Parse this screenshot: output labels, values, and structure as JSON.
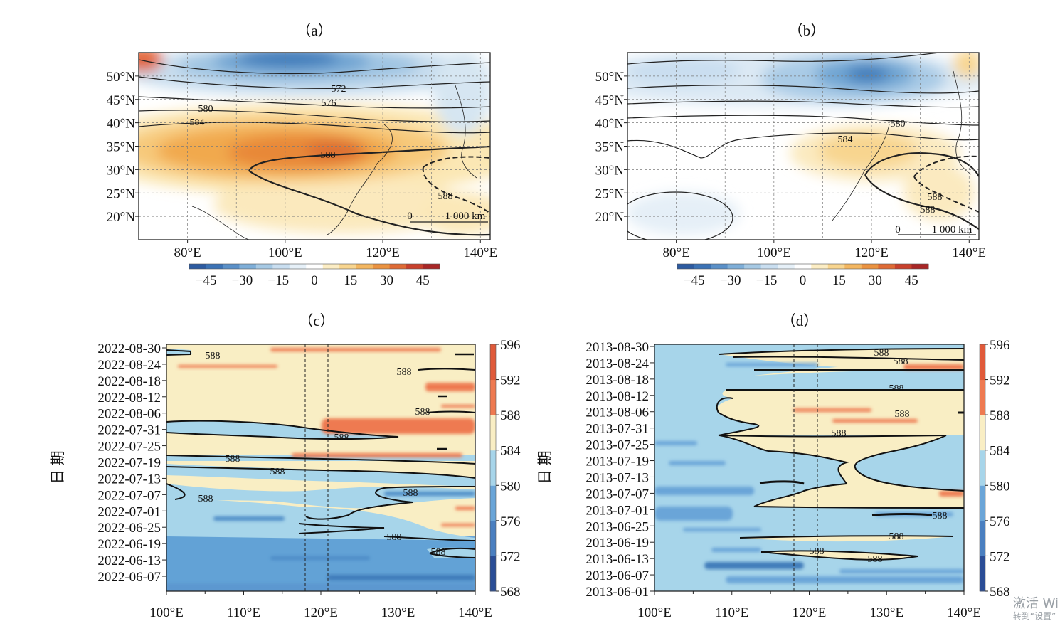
{
  "watermark": {
    "line1": "激活 Wi",
    "line2": "转到“设置”"
  },
  "chart_data": [
    {
      "id": "a",
      "type": "heatmap",
      "panel_label": "（a）",
      "x_ticks": [
        "80°E",
        "100°E",
        "120°E",
        "140°E"
      ],
      "x_tick_values": [
        80,
        100,
        120,
        140
      ],
      "y_ticks": [
        "50°N",
        "45°N",
        "40°N",
        "35°N",
        "30°N",
        "25°N",
        "20°N"
      ],
      "y_tick_values": [
        50,
        45,
        40,
        35,
        30,
        25,
        20
      ],
      "xlim": [
        70,
        142
      ],
      "ylim": [
        15,
        55
      ],
      "grid": true,
      "colorbar": {
        "ticks": [
          "−45",
          "−30",
          "−15",
          "0",
          "15",
          "30",
          "45"
        ],
        "values": [
          -45,
          -30,
          -15,
          0,
          15,
          30,
          45
        ],
        "range": [
          -52,
          52
        ],
        "orientation": "horizontal"
      },
      "contour_labels": [
        "572",
        "576",
        "580",
        "584",
        "588",
        "588"
      ],
      "scale_bar": {
        "zero": "0",
        "label": "1 000 km"
      }
    },
    {
      "id": "b",
      "type": "heatmap",
      "panel_label": "（b）",
      "x_ticks": [
        "80°E",
        "100°E",
        "120°E",
        "140°E"
      ],
      "x_tick_values": [
        80,
        100,
        120,
        140
      ],
      "y_ticks": [
        "50°N",
        "45°N",
        "40°N",
        "35°N",
        "30°N",
        "25°N",
        "20°N"
      ],
      "y_tick_values": [
        50,
        45,
        40,
        35,
        30,
        25,
        20
      ],
      "xlim": [
        70,
        142
      ],
      "ylim": [
        15,
        55
      ],
      "grid": true,
      "colorbar": {
        "ticks": [
          "−45",
          "−30",
          "−15",
          "0",
          "15",
          "30",
          "45"
        ],
        "values": [
          -45,
          -30,
          -15,
          0,
          15,
          30,
          45
        ],
        "range": [
          -52,
          52
        ],
        "orientation": "horizontal"
      },
      "contour_labels": [
        "580",
        "584",
        "588",
        "588"
      ],
      "scale_bar": {
        "zero": "0",
        "label": "1 000 km"
      }
    },
    {
      "id": "c",
      "type": "heatmap",
      "panel_label": "（c）",
      "ylabel": "日 期",
      "x_ticks": [
        "100°E",
        "110°E",
        "120°E",
        "130°E",
        "140°E"
      ],
      "x_tick_values": [
        100,
        110,
        120,
        130,
        140
      ],
      "xlim": [
        100,
        140
      ],
      "y_ticks": [
        "2022-06-07",
        "2022-06-13",
        "2022-06-19",
        "2022-06-25",
        "2022-07-01",
        "2022-07-07",
        "2022-07-13",
        "2022-07-19",
        "2022-07-25",
        "2022-07-31",
        "2022-08-06",
        "2022-08-12",
        "2022-08-18",
        "2022-08-24",
        "2022-08-30"
      ],
      "colorbar": {
        "ticks": [
          "568",
          "572",
          "576",
          "580",
          "584",
          "588",
          "592",
          "596"
        ],
        "values": [
          568,
          572,
          576,
          580,
          584,
          588,
          592,
          596
        ],
        "orientation": "vertical"
      },
      "contour_labels": [
        "588",
        "588",
        "588",
        "588",
        "588",
        "588",
        "588",
        "588",
        "588",
        "588"
      ]
    },
    {
      "id": "d",
      "type": "heatmap",
      "panel_label": "（d）",
      "ylabel": "日 期",
      "x_ticks": [
        "100°E",
        "110°E",
        "120°E",
        "130°E",
        "140°E"
      ],
      "x_tick_values": [
        100,
        110,
        120,
        130,
        140
      ],
      "xlim": [
        100,
        140
      ],
      "y_ticks": [
        "2013-06-01",
        "2013-06-07",
        "2013-06-13",
        "2013-06-19",
        "2013-06-25",
        "2013-07-01",
        "2013-07-07",
        "2013-07-13",
        "2013-07-19",
        "2013-07-25",
        "2013-07-31",
        "2013-08-06",
        "2013-08-12",
        "2013-08-18",
        "2013-08-24",
        "2013-08-30"
      ],
      "colorbar": {
        "ticks": [
          "568",
          "572",
          "576",
          "580",
          "584",
          "588",
          "592",
          "596"
        ],
        "values": [
          568,
          572,
          576,
          580,
          584,
          588,
          592,
          596
        ],
        "orientation": "vertical"
      },
      "contour_labels": [
        "588",
        "588",
        "588",
        "588",
        "588",
        "588",
        "588",
        "588",
        "588"
      ]
    }
  ]
}
